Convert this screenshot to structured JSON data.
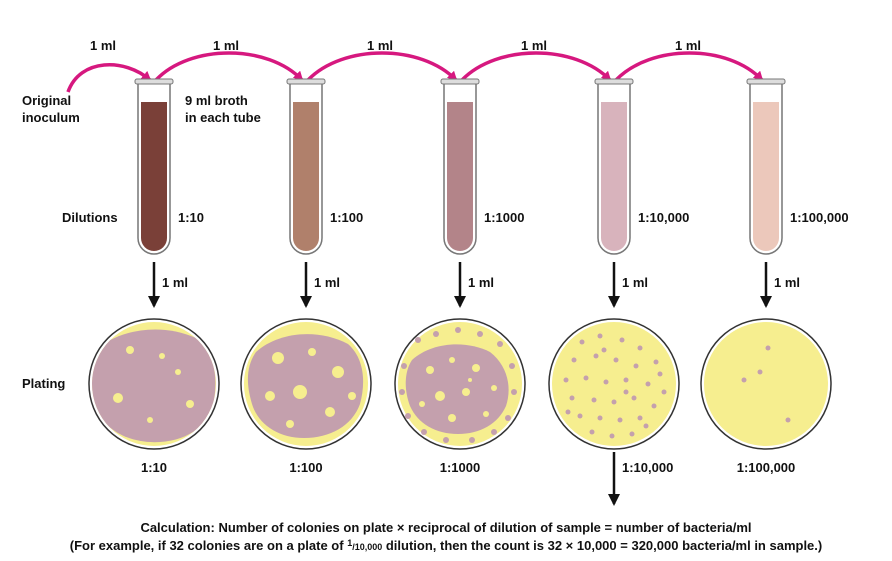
{
  "transfer_volume_label": "1 ml",
  "original_inoculum_label": [
    "Original",
    "inoculum"
  ],
  "broth_label": [
    "9 ml broth",
    "in each tube"
  ],
  "dilutions_label": "Dilutions",
  "plating_label": "Plating",
  "plating_volume_label": "1 ml",
  "tubes": [
    {
      "dilution": "1:10",
      "color": "#7a4038"
    },
    {
      "dilution": "1:100",
      "color": "#b0806b"
    },
    {
      "dilution": "1:1000",
      "color": "#b38489"
    },
    {
      "dilution": "1:10,000",
      "color": "#d8b3bc"
    },
    {
      "dilution": "1:100,000",
      "color": "#ecc8bb"
    }
  ],
  "plates": [
    {
      "dilution": "1:10",
      "colonies": "confluent"
    },
    {
      "dilution": "1:100",
      "colonies": "confluent"
    },
    {
      "dilution": "1:1000",
      "colonies": "too numerous"
    },
    {
      "dilution": "1:10,000",
      "colonies": "32"
    },
    {
      "dilution": "1:100,000",
      "colonies": "4"
    }
  ],
  "colors": {
    "arrow_magenta": "#d6187f",
    "agar_yellow": "#f6ee8f",
    "colony_mauve": "#c4a0ad"
  },
  "calculation": {
    "line1": "Calculation: Number of colonies on plate × reciprocal of dilution of sample = number of bacteria/ml",
    "line2_before": "(For example, if 32 colonies are on a plate of ",
    "fraction_numerator": "1",
    "fraction_denominator": "/10,000",
    "line2_after": " dilution, then the count is 32 × 10,000 = 320,000 bacteria/ml in sample.)"
  }
}
